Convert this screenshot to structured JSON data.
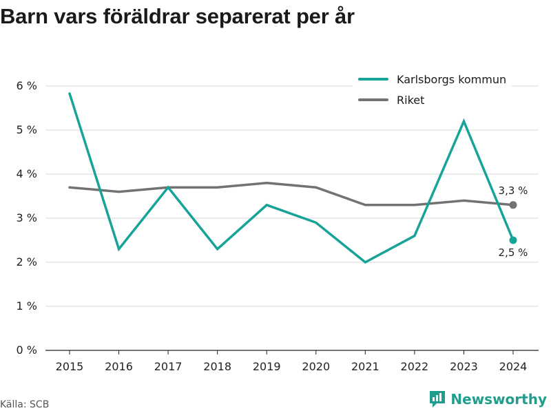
{
  "title": "Barn vars föräldrar separerat per år",
  "source": "Källa: SCB",
  "brand": {
    "name": "Newsworthy",
    "icon": "newsworthy-logo-icon",
    "color": "#1f9e8e"
  },
  "chart_data": {
    "type": "line",
    "x": [
      "2015",
      "2016",
      "2017",
      "2018",
      "2019",
      "2020",
      "2021",
      "2022",
      "2023",
      "2024"
    ],
    "ylim": [
      0,
      6
    ],
    "yticks": [
      0,
      1,
      2,
      3,
      4,
      5,
      6
    ],
    "ytick_labels": [
      "0 %",
      "1 %",
      "2 %",
      "3 %",
      "4 %",
      "5 %",
      "6 %"
    ],
    "grid": true,
    "legend_position": "top-right",
    "series": [
      {
        "name": "Karlsborgs kommun",
        "color": "#17a398",
        "values": [
          5.83,
          2.3,
          3.7,
          2.3,
          3.3,
          2.9,
          2.0,
          2.6,
          5.2,
          2.5
        ],
        "end_label": "2,5 %"
      },
      {
        "name": "Riket",
        "color": "#727272",
        "values": [
          3.7,
          3.6,
          3.7,
          3.7,
          3.8,
          3.7,
          3.3,
          3.3,
          3.4,
          3.3
        ],
        "end_label": "3,3 %"
      }
    ]
  }
}
